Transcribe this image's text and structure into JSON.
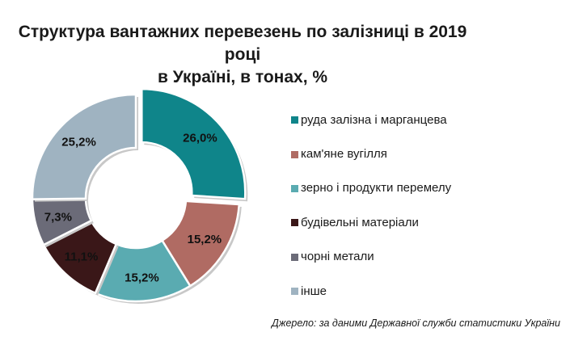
{
  "title": {
    "line1": "Структура вантажних перевезень по залізниці в 2019 році",
    "line2": "в Україні, в тонах, %"
  },
  "chart_data": {
    "type": "pie",
    "variant": "donut",
    "title": "Структура вантажних перевезень по залізниці в 2019 році в Україні, в тонах, %",
    "legend_position": "right",
    "categories": [
      "руда залізна і марганцева",
      "кам'яне вугілля",
      "зерно і продукти перемелу",
      "будівельні матеріали",
      "чорні метали",
      "інше"
    ],
    "values": [
      26.0,
      15.2,
      15.2,
      11.1,
      7.3,
      25.2
    ],
    "labels": [
      "26,0%",
      "15,2%",
      "15,2%",
      "11,1%",
      "7,3%",
      "25,2%"
    ],
    "colors": [
      "#0f858a",
      "#b06b63",
      "#5aabb1",
      "#3a1718",
      "#6b6b78",
      "#9fb3c1"
    ]
  },
  "legend": [
    {
      "label": "руда залізна і марганцева",
      "color": "#0f858a"
    },
    {
      "label": "кам'яне вугілля",
      "color": "#b06b63"
    },
    {
      "label": "зерно і продукти перемелу",
      "color": "#5aabb1"
    },
    {
      "label": "будівельні матеріали",
      "color": "#3a1718"
    },
    {
      "label": "чорні метали",
      "color": "#6b6b78"
    },
    {
      "label": "інше",
      "color": "#9fb3c1"
    }
  ],
  "source": "Джерело: за даними Державної служби статистики України"
}
